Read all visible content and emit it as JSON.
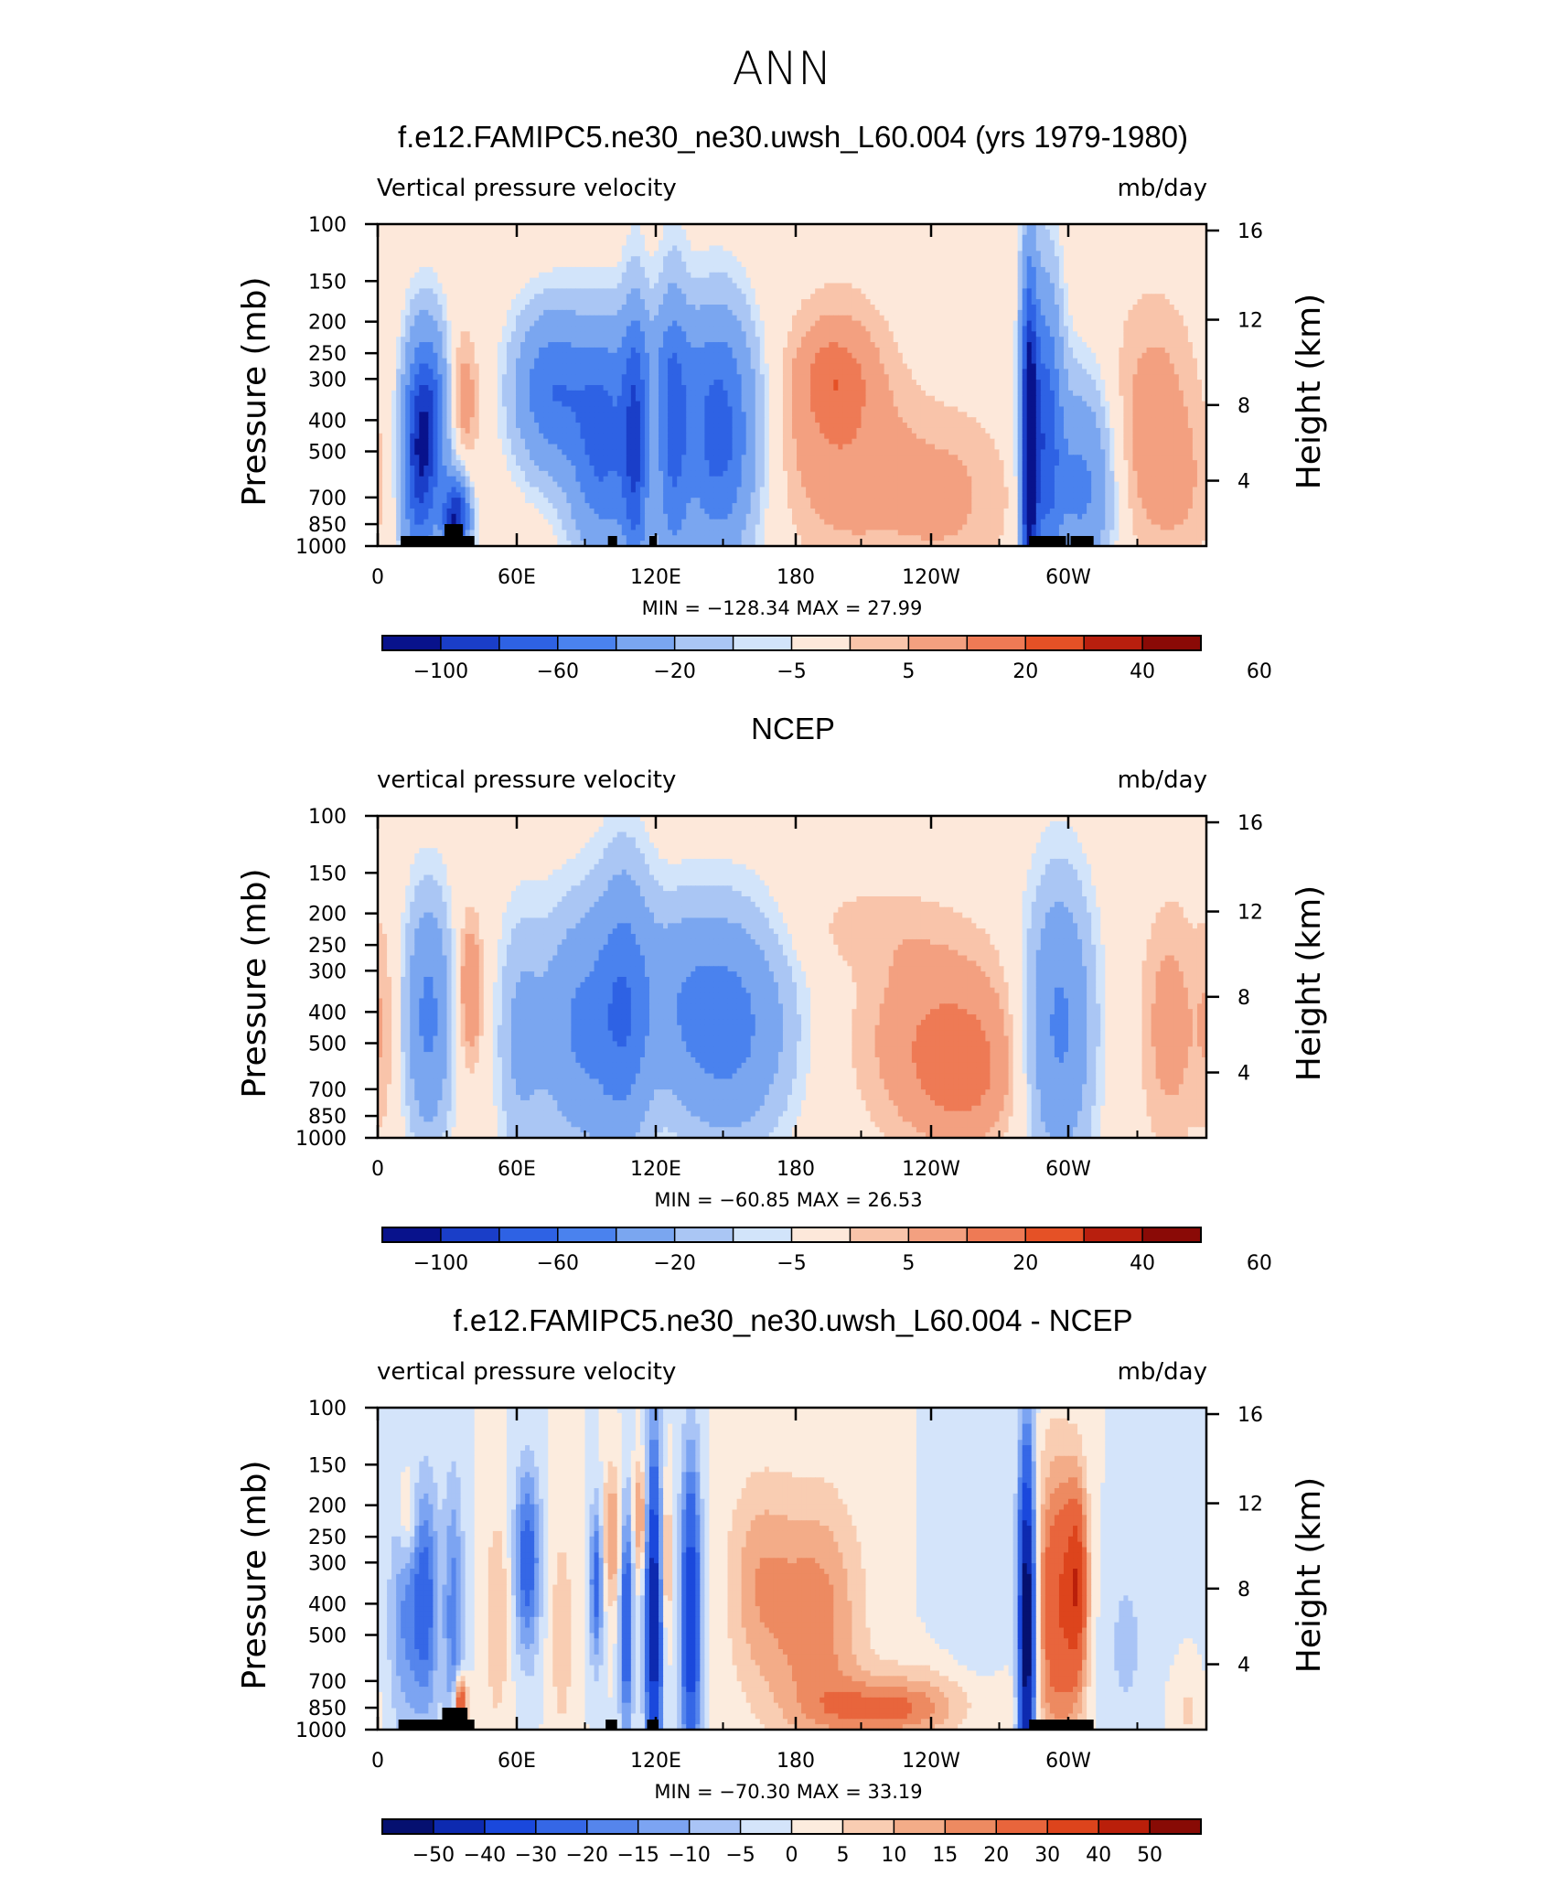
{
  "figure_title": "ANN",
  "colors": {
    "main_palette": [
      "#08128c",
      "#1a3ec8",
      "#2e62e4",
      "#4a82ee",
      "#7aa6f0",
      "#aac6f4",
      "#d2e4fa",
      "#fde8da",
      "#f9c4aa",
      "#f3a080",
      "#ee7a55",
      "#e55126",
      "#b81f0e",
      "#8a0a06"
    ],
    "diff_palette": [
      "#051070",
      "#0d2ab0",
      "#1a48dc",
      "#3567e6",
      "#5585ec",
      "#7ca4f2",
      "#a9c4f6",
      "#d4e4fa",
      "#fcecde",
      "#f9cdb2",
      "#f3ac88",
      "#ed8a61",
      "#e8653c",
      "#dd441c",
      "#ba1f0a",
      "#880b05"
    ],
    "land": "#000000"
  },
  "chart_data": [
    {
      "type": "heatmap",
      "panel_title": "f.e12.FAMIPC5.ne30_ne30.uwsh_L60.004 (yrs 1979-1980)",
      "left_label": "Vertical pressure velocity",
      "right_label": "mb/day",
      "xlabel": "",
      "ylabel": "Pressure (mb)",
      "y2label": "Height (km)",
      "xticks": [
        "0",
        "60E",
        "120E",
        "180",
        "120W",
        "60W"
      ],
      "yticks": [
        "100",
        "150",
        "200",
        "250",
        "300",
        "400",
        "500",
        "700",
        "850",
        "1000"
      ],
      "y2ticks": [
        "16",
        "12",
        "8",
        "4"
      ],
      "min_max": "MIN = −128.34   MAX =   27.99",
      "min": -128.34,
      "max": 27.99,
      "colorbar_labels": [
        "−100",
        "−60",
        "−20",
        "−5",
        "5",
        "20",
        "40",
        "60"
      ],
      "palette": "main_palette",
      "land_segments": [
        [
          10,
          42
        ],
        [
          100,
          104
        ],
        [
          118,
          121
        ],
        [
          283,
          299
        ],
        [
          301,
          311
        ]
      ],
      "land_bumps": [
        [
          29,
          37
        ]
      ],
      "features": [
        {
          "lon": 22,
          "p": 420,
          "v": -75,
          "w": 6,
          "h": 1.2
        },
        {
          "lon": 17,
          "p": 600,
          "v": -55,
          "w": 5,
          "h": 1.4
        },
        {
          "lon": 34,
          "p": 820,
          "v": -100,
          "w": 4,
          "h": 0.5
        },
        {
          "lon": 37,
          "p": 350,
          "v": 16,
          "w": 5,
          "h": 0.9
        },
        {
          "lon": 75,
          "p": 330,
          "v": -55,
          "w": 11,
          "h": 1.0
        },
        {
          "lon": 98,
          "p": 480,
          "v": -65,
          "w": 10,
          "h": 1.4
        },
        {
          "lon": 112,
          "p": 500,
          "v": -65,
          "w": 4,
          "h": 1.8
        },
        {
          "lon": 128,
          "p": 450,
          "v": -55,
          "w": 5,
          "h": 1.8
        },
        {
          "lon": 148,
          "p": 450,
          "v": -70,
          "w": 11,
          "h": 1.5
        },
        {
          "lon": 122,
          "p": 260,
          "v": -12,
          "w": 20,
          "h": 0.6
        },
        {
          "lon": 200,
          "p": 420,
          "v": 18,
          "w": 18,
          "h": 1.6
        },
        {
          "lon": 198,
          "p": 300,
          "v": 14,
          "w": 10,
          "h": 0.6
        },
        {
          "lon": 245,
          "p": 700,
          "v": 12,
          "w": 22,
          "h": 1.2
        },
        {
          "lon": 283,
          "p": 500,
          "v": -120,
          "w": 2.5,
          "h": 2.2
        },
        {
          "lon": 290,
          "p": 450,
          "v": -70,
          "w": 5,
          "h": 1.9
        },
        {
          "lon": 306,
          "p": 650,
          "v": -45,
          "w": 9,
          "h": 1.3
        },
        {
          "lon": 337,
          "p": 400,
          "v": 14,
          "w": 14,
          "h": 1.6
        },
        {
          "lon": 350,
          "p": 700,
          "v": 6,
          "w": 14,
          "h": 1.0
        }
      ]
    },
    {
      "type": "heatmap",
      "panel_title": "NCEP",
      "left_label": "vertical pressure velocity",
      "right_label": "mb/day",
      "xlabel": "",
      "ylabel": "Pressure (mb)",
      "y2label": "Height (km)",
      "xticks": [
        "0",
        "60E",
        "120E",
        "180",
        "120W",
        "60W"
      ],
      "yticks": [
        "100",
        "150",
        "200",
        "250",
        "300",
        "400",
        "500",
        "700",
        "850",
        "1000"
      ],
      "y2ticks": [
        "16",
        "12",
        "8",
        "4"
      ],
      "min_max": "MIN = −60.85   MAX =   26.53",
      "min": -60.85,
      "max": 26.53,
      "colorbar_labels": [
        "−100",
        "−60",
        "−20",
        "−5",
        "5",
        "20",
        "40",
        "60"
      ],
      "palette": "main_palette",
      "land_segments": [],
      "land_bumps": [],
      "features": [
        {
          "lon": 22,
          "p": 420,
          "v": -45,
          "w": 7,
          "h": 1.5
        },
        {
          "lon": 40,
          "p": 350,
          "v": 20,
          "w": 4,
          "h": 1.0
        },
        {
          "lon": 62,
          "p": 500,
          "v": -22,
          "w": 7,
          "h": 1.6
        },
        {
          "lon": 88,
          "p": 450,
          "v": -42,
          "w": 12,
          "h": 1.5
        },
        {
          "lon": 107,
          "p": 400,
          "v": -45,
          "w": 8,
          "h": 1.8
        },
        {
          "lon": 152,
          "p": 450,
          "v": -48,
          "w": 18,
          "h": 1.4
        },
        {
          "lon": 128,
          "p": 350,
          "v": -18,
          "w": 14,
          "h": 1.2
        },
        {
          "lon": 245,
          "p": 500,
          "v": 20,
          "w": 24,
          "h": 1.3
        },
        {
          "lon": 255,
          "p": 650,
          "v": 12,
          "w": 14,
          "h": 0.8
        },
        {
          "lon": 296,
          "p": 450,
          "v": -45,
          "w": 10,
          "h": 1.8
        },
        {
          "lon": 344,
          "p": 450,
          "v": 14,
          "w": 9,
          "h": 1.6
        },
        {
          "lon": 2,
          "p": 450,
          "v": 9,
          "w": 5,
          "h": 1.5
        },
        {
          "lon": 210,
          "p": 220,
          "v": 6,
          "w": 25,
          "h": 0.6
        }
      ]
    },
    {
      "type": "heatmap",
      "panel_title": "f.e12.FAMIPC5.ne30_ne30.uwsh_L60.004 - NCEP",
      "left_label": "vertical pressure velocity",
      "right_label": "mb/day",
      "xlabel": "",
      "ylabel": "Pressure (mb)",
      "y2label": "Height (km)",
      "xticks": [
        "0",
        "60E",
        "120E",
        "180",
        "120W",
        "60W"
      ],
      "yticks": [
        "100",
        "150",
        "200",
        "250",
        "300",
        "400",
        "500",
        "700",
        "850",
        "1000"
      ],
      "y2ticks": [
        "16",
        "12",
        "8",
        "4"
      ],
      "min_max": "MIN = −70.30   MAX =   33.19",
      "min": -70.3,
      "max": 33.19,
      "colorbar_labels": [
        "−50",
        "−40",
        "−30",
        "−20",
        "−15",
        "−10",
        "−5",
        "0",
        "5",
        "10",
        "15",
        "20",
        "30",
        "40",
        "50"
      ],
      "palette": "diff_palette",
      "land_segments": [
        [
          9,
          42
        ],
        [
          99,
          104
        ],
        [
          117,
          122
        ],
        [
          283,
          311
        ]
      ],
      "land_bumps": [
        [
          28,
          39
        ]
      ],
      "features": [
        {
          "lon": 12,
          "p": 450,
          "v": -15,
          "w": 5,
          "h": 1.5
        },
        {
          "lon": 13,
          "p": 220,
          "v": 12,
          "w": 2.5,
          "h": 0.6
        },
        {
          "lon": 21,
          "p": 400,
          "v": -22,
          "w": 4,
          "h": 1.5
        },
        {
          "lon": 33,
          "p": 450,
          "v": -18,
          "w": 3,
          "h": 1.8
        },
        {
          "lon": 36,
          "p": 830,
          "v": 35,
          "w": 2,
          "h": 0.35
        },
        {
          "lon": 52,
          "p": 450,
          "v": 10,
          "w": 4,
          "h": 1.4
        },
        {
          "lon": 65,
          "p": 300,
          "v": -25,
          "w": 4,
          "h": 1.2
        },
        {
          "lon": 80,
          "p": 500,
          "v": 8,
          "w": 4,
          "h": 1.6
        },
        {
          "lon": 95,
          "p": 350,
          "v": -25,
          "w": 2,
          "h": 1.0
        },
        {
          "lon": 102,
          "p": 250,
          "v": 16,
          "w": 3,
          "h": 0.9
        },
        {
          "lon": 108,
          "p": 450,
          "v": -30,
          "w": 2,
          "h": 1.5
        },
        {
          "lon": 114,
          "p": 220,
          "v": 18,
          "w": 2,
          "h": 0.7
        },
        {
          "lon": 120,
          "p": 450,
          "v": -50,
          "w": 2.5,
          "h": 2.2
        },
        {
          "lon": 125,
          "p": 300,
          "v": 14,
          "w": 2,
          "h": 1.0
        },
        {
          "lon": 136,
          "p": 450,
          "v": -40,
          "w": 3,
          "h": 2.0
        },
        {
          "lon": 165,
          "p": 350,
          "v": 12,
          "w": 10,
          "h": 1.4
        },
        {
          "lon": 190,
          "p": 450,
          "v": 18,
          "w": 14,
          "h": 1.6
        },
        {
          "lon": 220,
          "p": 880,
          "v": 16,
          "w": 20,
          "h": 0.35
        },
        {
          "lon": 232,
          "p": 780,
          "v": 8,
          "w": 30,
          "h": 0.5
        },
        {
          "lon": 260,
          "p": 450,
          "v": -5,
          "w": 10,
          "h": 1.6
        },
        {
          "lon": 282,
          "p": 480,
          "v": -65,
          "w": 2.5,
          "h": 2.3
        },
        {
          "lon": 296,
          "p": 400,
          "v": 30,
          "w": 7,
          "h": 1.8
        },
        {
          "lon": 304,
          "p": 350,
          "v": 25,
          "w": 3,
          "h": 1.2
        },
        {
          "lon": 325,
          "p": 550,
          "v": -6,
          "w": 8,
          "h": 1.5
        },
        {
          "lon": 352,
          "p": 870,
          "v": 6,
          "w": 5,
          "h": 0.4
        }
      ]
    }
  ]
}
